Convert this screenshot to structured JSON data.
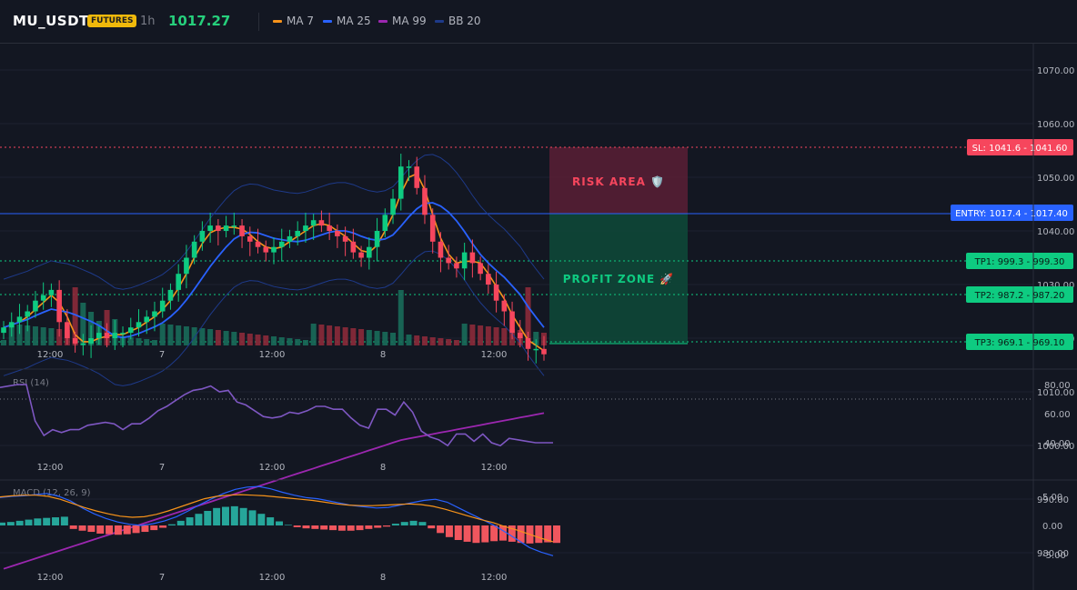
{
  "header": {
    "symbol": "MU_USDT",
    "badge": "FUTURES",
    "timeframe": "1h",
    "last_price": "1017.27",
    "indicators": [
      {
        "label": "MA 7",
        "color": "#f7931a"
      },
      {
        "label": "MA 25",
        "color": "#2962ff"
      },
      {
        "label": "MA 99",
        "color": "#9c27b0"
      },
      {
        "label": "BB 20",
        "color": "#1e3a8a"
      }
    ]
  },
  "price_axis": [
    "1070.00",
    "1060.00",
    "1050.00",
    "1040.00",
    "1030.00",
    "1020.00",
    "1010.00",
    "1000.00",
    "990.00",
    "980.00"
  ],
  "time_axis": [
    "12:00",
    "7",
    "12:00",
    "8",
    "12:00"
  ],
  "zones": {
    "risk": "RISK AREA 🛡️",
    "profit": "PROFIT ZONE 🚀"
  },
  "level_labels": {
    "sl": "SL: 1041.6 - 1041.60",
    "entry": "ENTRY: 1017.4 - 1017.40",
    "tp1": "TP1: 999.3 - 999.30",
    "tp2": "TP2: 987.2 - 987.20",
    "tp3": "TP3: 969.1 - 969.10"
  },
  "rsi": {
    "label": "RSI (14)",
    "axis": [
      "80.00",
      "60.00",
      "40.00"
    ]
  },
  "macd": {
    "label": "MACD (12, 26, 9)",
    "axis": [
      "5.00",
      "0.00",
      "-5.00"
    ]
  },
  "colors": {
    "up": "#26a69a",
    "up_bright": "#0ecb81",
    "down": "#f6465d",
    "sl": "#f6465d",
    "entry": "#2962ff",
    "tp": "#0ecb81",
    "rsi": "#7e57c2"
  },
  "chart_data": [
    {
      "type": "candlestick",
      "title": "",
      "y_range": [
        966,
        1080
      ],
      "levels": {
        "sl": 1041.6,
        "entry": 1017.4,
        "tp1": 999.3,
        "tp2": 987.2,
        "tp3": 969.1
      },
      "candles_close_approx": [
        1022,
        1023,
        1024,
        1025,
        1027,
        1028,
        1029,
        1023,
        1020,
        1019,
        1019,
        1020,
        1021,
        1020,
        1021,
        1021,
        1022,
        1023,
        1024,
        1025,
        1027,
        1029,
        1032,
        1035,
        1038,
        1040,
        1041,
        1040,
        1041,
        1041,
        1039,
        1038,
        1037,
        1036,
        1037,
        1038,
        1039,
        1040,
        1041,
        1042,
        1041,
        1040,
        1039,
        1038,
        1036,
        1035,
        1037,
        1040,
        1043,
        1046,
        1052,
        1052,
        1048,
        1043,
        1038,
        1035,
        1034,
        1033,
        1036,
        1034,
        1032,
        1030,
        1027,
        1025,
        1021,
        1020,
        1018,
        1018,
        1017
      ]
    },
    {
      "type": "line",
      "title": "RSI (14)",
      "y_range": [
        30,
        90
      ],
      "values": [
        78,
        79,
        80,
        80,
        55,
        45,
        49,
        47,
        49,
        49,
        52,
        53,
        54,
        53,
        49,
        53,
        53,
        57,
        62,
        65,
        69,
        73,
        76,
        77,
        79,
        75,
        76,
        68,
        66,
        62,
        58,
        57,
        58,
        61,
        60,
        62,
        65,
        65,
        63,
        63,
        57,
        52,
        50,
        63,
        63,
        59,
        68,
        61,
        48,
        44,
        42,
        38,
        46,
        46,
        41,
        46,
        40,
        38,
        43,
        42,
        41,
        40,
        40,
        40
      ],
      "overbought": 70
    },
    {
      "type": "bar",
      "title": "MACD (12, 26, 9)",
      "y_range": [
        -6.5,
        7
      ],
      "histogram": [
        0.5,
        0.6,
        0.8,
        1.0,
        1.2,
        1.3,
        1.4,
        1.5,
        -0.6,
        -0.9,
        -1.1,
        -1.4,
        -1.5,
        -1.6,
        -1.5,
        -1.3,
        -1.1,
        -0.8,
        -0.4,
        0.2,
        0.8,
        1.4,
        2.0,
        2.5,
        3.0,
        3.2,
        3.3,
        3.0,
        2.6,
        2.0,
        1.4,
        0.7,
        0.1,
        -0.3,
        -0.5,
        -0.6,
        -0.7,
        -0.8,
        -0.9,
        -0.9,
        -0.8,
        -0.6,
        -0.4,
        -0.2,
        0.3,
        0.6,
        0.8,
        0.6,
        -0.5,
        -1.3,
        -2.0,
        -2.5,
        -2.8,
        -3.0,
        -2.9,
        -2.7,
        -2.6,
        -2.8,
        -3.0,
        -3.1,
        -3.0,
        -2.9,
        -3.0
      ],
      "macd_line": [
        4.8,
        5.0,
        5.1,
        5.3,
        5.5,
        5.0,
        4.2,
        3.0,
        2.0,
        1.2,
        0.6,
        0.2,
        0.0,
        0.3,
        0.8,
        1.5,
        2.5,
        3.6,
        4.6,
        5.5,
        6.2,
        6.6,
        6.7,
        6.3,
        5.7,
        5.2,
        4.8,
        4.6,
        4.2,
        3.8,
        3.4,
        3.2,
        3.0,
        3.1,
        3.5,
        3.9,
        4.3,
        4.5,
        4.0,
        3.0,
        2.0,
        1.0,
        0.0,
        -1.2,
        -2.5,
        -3.8,
        -4.6,
        -5.2
      ],
      "signal_line": [
        4.9,
        5.1,
        5.2,
        5.2,
        5.0,
        4.5,
        3.8,
        3.1,
        2.5,
        2.0,
        1.6,
        1.4,
        1.5,
        1.9,
        2.5,
        3.2,
        3.9,
        4.6,
        5.0,
        5.2,
        5.3,
        5.2,
        5.1,
        4.9,
        4.7,
        4.5,
        4.3,
        4.0,
        3.7,
        3.5,
        3.4,
        3.4,
        3.5,
        3.6,
        3.7,
        3.6,
        3.3,
        2.8,
        2.2,
        1.6,
        1.0,
        0.5,
        -0.2,
        -0.8,
        -1.5,
        -2.2,
        -2.8
      ]
    }
  ]
}
